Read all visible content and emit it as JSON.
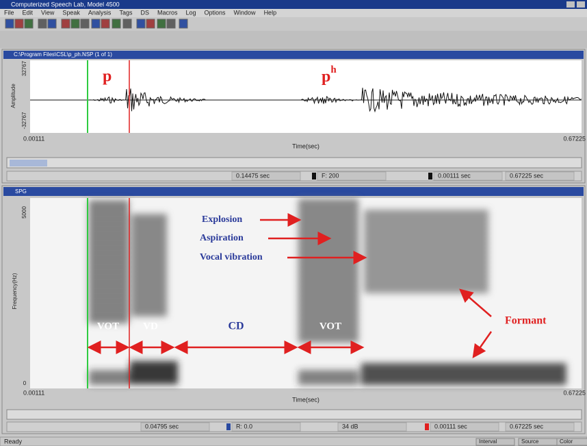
{
  "window": {
    "title": "Computerized Speech Lab, Model 4500",
    "menu": [
      "File",
      "Edit",
      "View",
      "Speak",
      "Analysis",
      "Tags",
      "DS",
      "Macros",
      "Log",
      "Options",
      "Window",
      "Help"
    ]
  },
  "waveform": {
    "title": "C:\\Program Files\\CSL\\p_ph.NSP (1 of 1)",
    "y_axis_label": "Amplitude",
    "y_max": "32767",
    "y_min": "-32767",
    "x_start": "0.00111",
    "x_end": "0.67225",
    "x_axis_label": "Time(sec)",
    "status": [
      "0.14475 sec",
      "F: 200",
      "0.00111 sec",
      "0.67225 sec"
    ],
    "annotation_p": "p",
    "annotation_ph": {
      "base": "p",
      "sup": "h"
    }
  },
  "spectrogram": {
    "title": "SPG",
    "y_axis_label": "Frequency(Hz)",
    "y_max": "5000",
    "y_min": "0",
    "x_start": "0.00111",
    "x_end": "0.67225",
    "x_axis_label": "Time(sec)",
    "status": [
      "0.04795 sec",
      "R: 0.0",
      "34 dB",
      "0.00111 sec",
      "0.67225 sec"
    ],
    "labels": {
      "explosion": "Explosion",
      "aspiration": "Aspiration",
      "vocal_vibration": "Vocal vibration",
      "formant": "Formant",
      "segments": [
        "VOT",
        "VD",
        "CD",
        "VOT"
      ]
    }
  },
  "statusbar": {
    "text": "Ready",
    "panes": [
      "Interval",
      "Source",
      "Color"
    ]
  }
}
